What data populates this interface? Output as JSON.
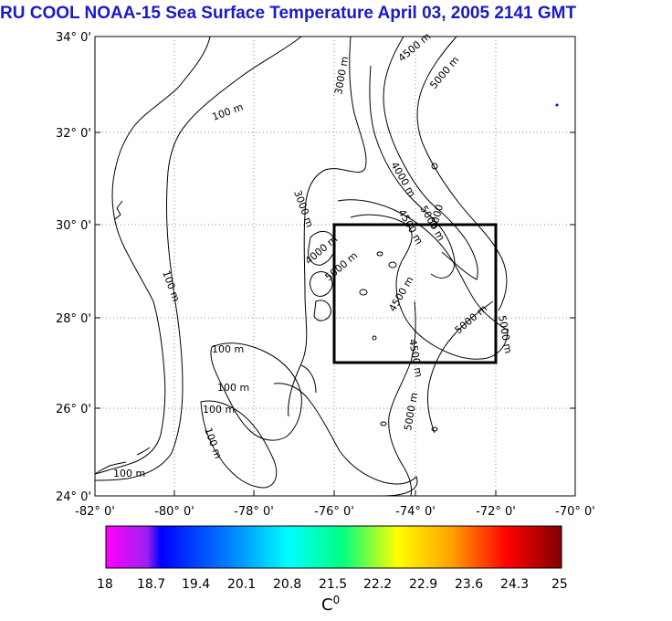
{
  "title": "RU COOL  NOAA-15 Sea Surface Temperature April 03, 2005 2141 GMT",
  "map": {
    "lat_labels": [
      "34° 0'",
      "32° 0'",
      "30° 0'",
      "28° 0'",
      "26° 0'",
      "24° 0'"
    ],
    "lon_labels": [
      "-82° 0'",
      "-80° 0'",
      "-78° 0'",
      "-76° 0'",
      "-74° 0'",
      "-72° 0'",
      "-70° 0'"
    ],
    "contour_labels": [
      "100 m",
      "100 m",
      "100 m",
      "100 m",
      "100 m",
      "100 m",
      "100 m",
      "3000 m",
      "3000 m",
      "4500 m",
      "5000 m",
      "4000 m",
      "4000",
      "4500 m",
      "5000 m",
      "5000 m",
      "4500 m",
      "4500 m",
      "5000 m",
      "5000 m",
      "4000 m",
      "5000 m"
    ],
    "box_color": "#000000"
  },
  "colorbar": {
    "ticks": [
      "18",
      "18.7",
      "19.4",
      "20.1",
      "20.8",
      "21.5",
      "22.2",
      "22.9",
      "23.6",
      "24.3",
      "25"
    ],
    "colors": [
      "#ff00ff",
      "#0000ff",
      "#00a0ff",
      "#00ffff",
      "#00ff80",
      "#c0ff00",
      "#ffff00",
      "#ffa000",
      "#ff4000",
      "#e00000",
      "#800000"
    ],
    "units": "C",
    "units_sup": "0"
  }
}
